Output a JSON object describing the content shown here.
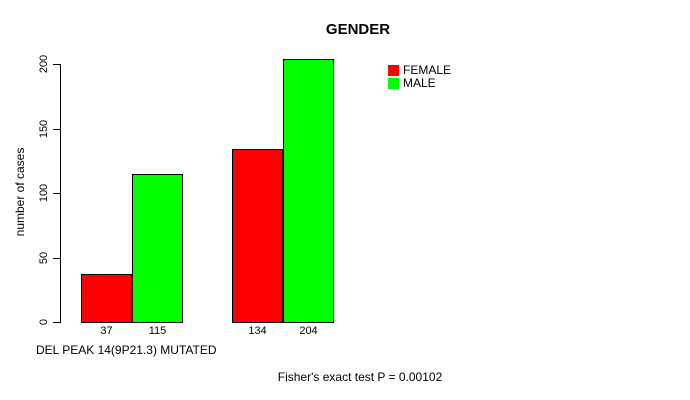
{
  "chart_data": {
    "type": "bar",
    "title": "GENDER",
    "ylabel": "number of cases",
    "xlabel": "DEL PEAK 14(9P21.3) MUTATED",
    "annotation": "Fisher's exact test P = 0.00102",
    "yticks": [
      0,
      50,
      100,
      150,
      200
    ],
    "ylim": [
      0,
      204
    ],
    "grid": false,
    "legend_position": "top-right",
    "series": [
      {
        "name": "FEMALE",
        "color": "#FF0000",
        "values": [
          37,
          134
        ]
      },
      {
        "name": "MALE",
        "color": "#00FF00",
        "values": [
          115,
          204
        ]
      }
    ]
  }
}
